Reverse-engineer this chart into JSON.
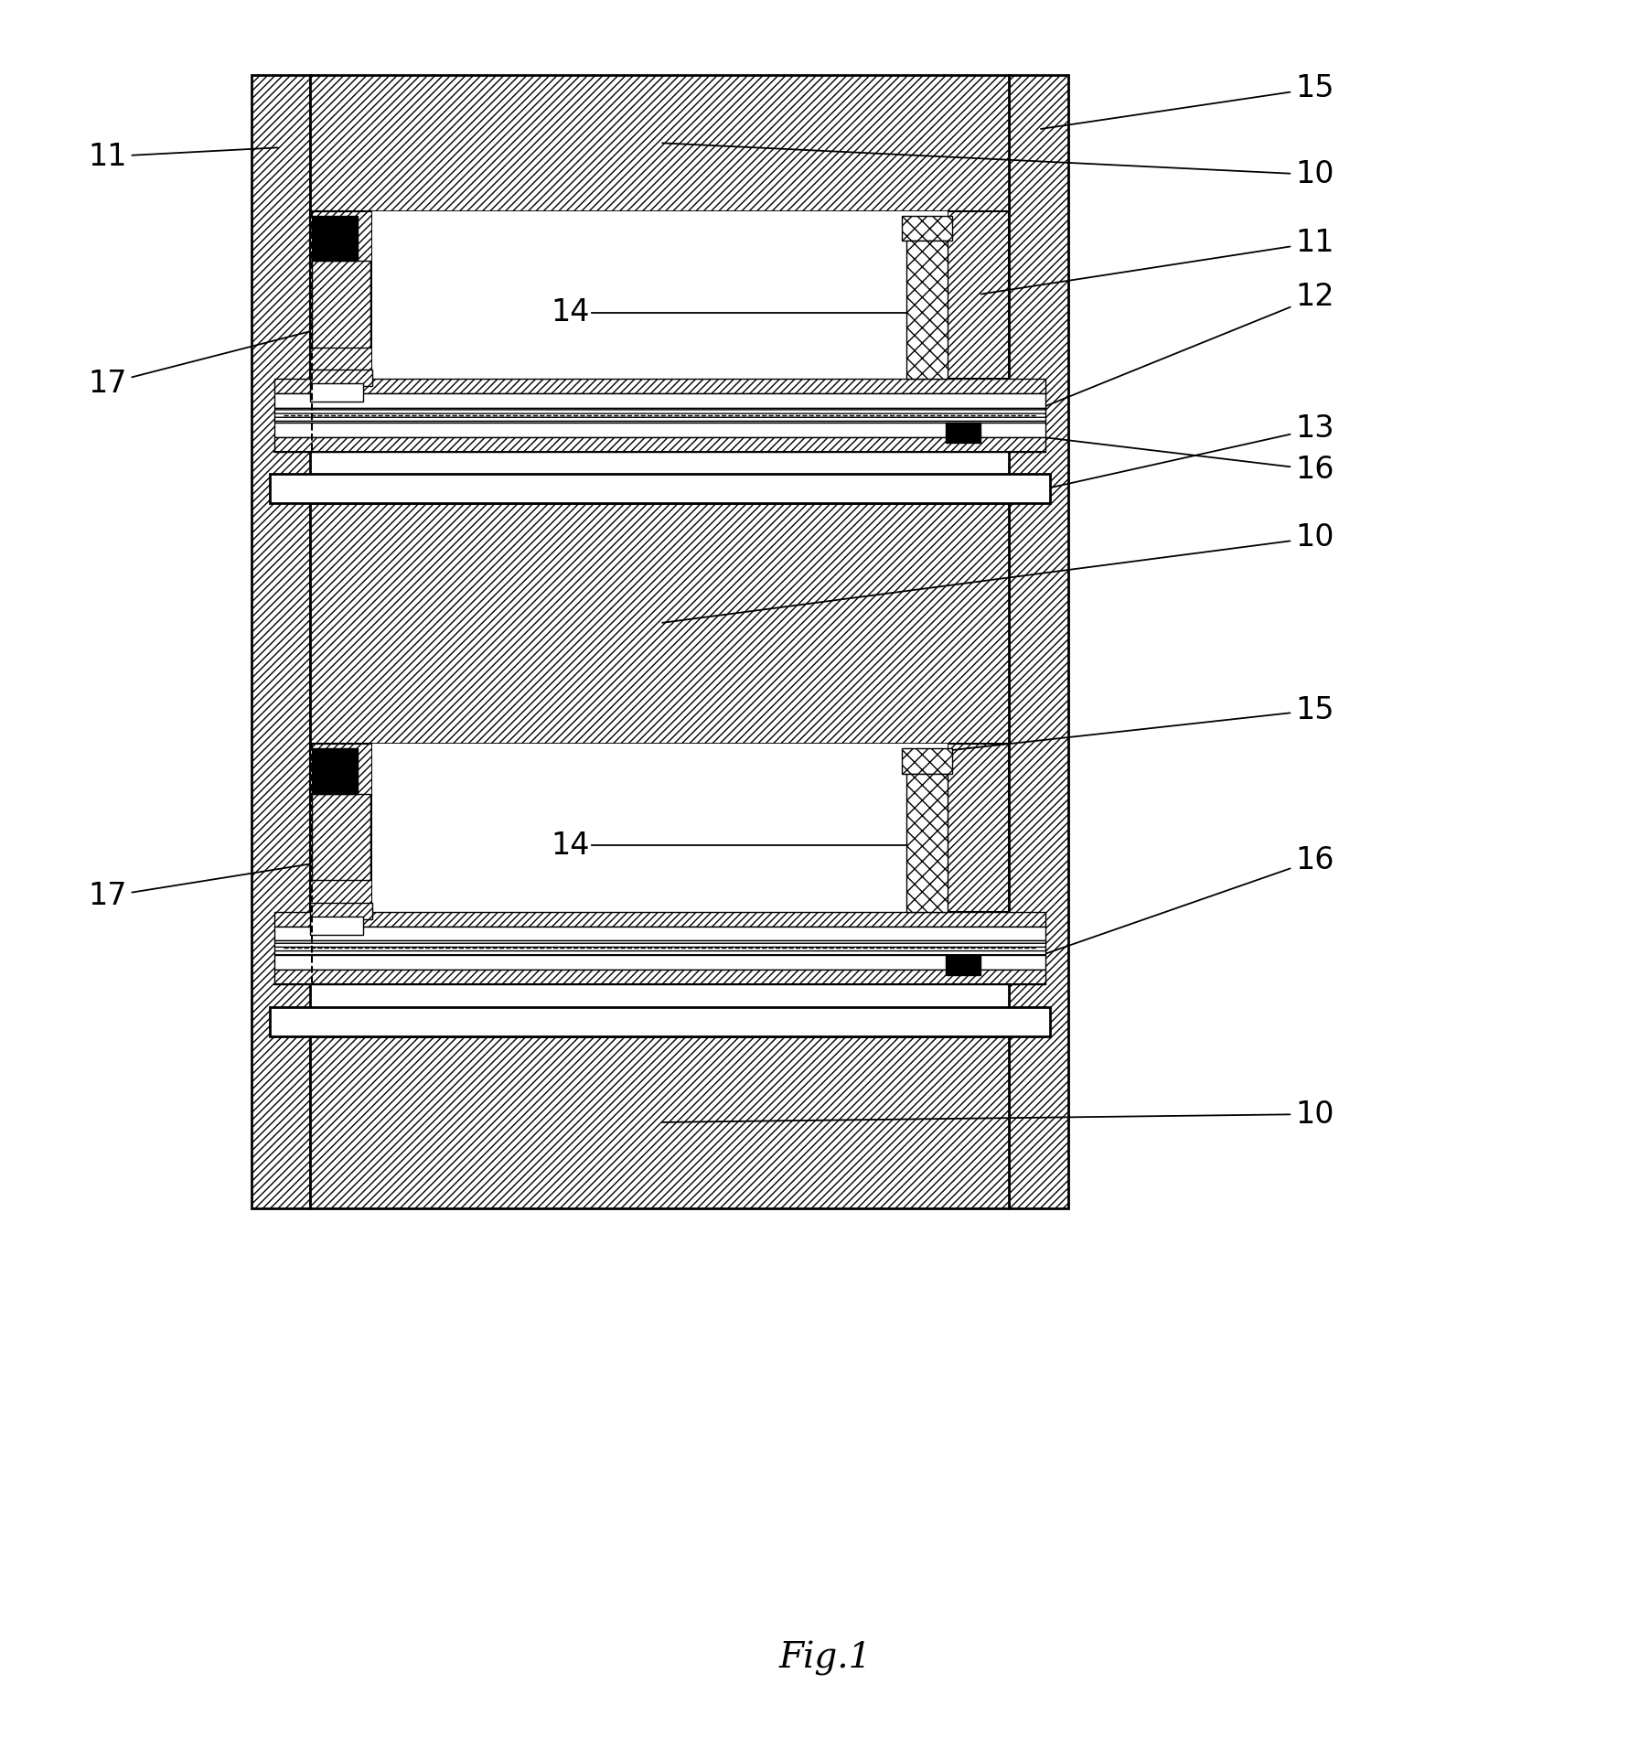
{
  "title": "Fig.1",
  "bg_color": "#ffffff",
  "fig_width": 18.04,
  "fig_height": 19.23
}
